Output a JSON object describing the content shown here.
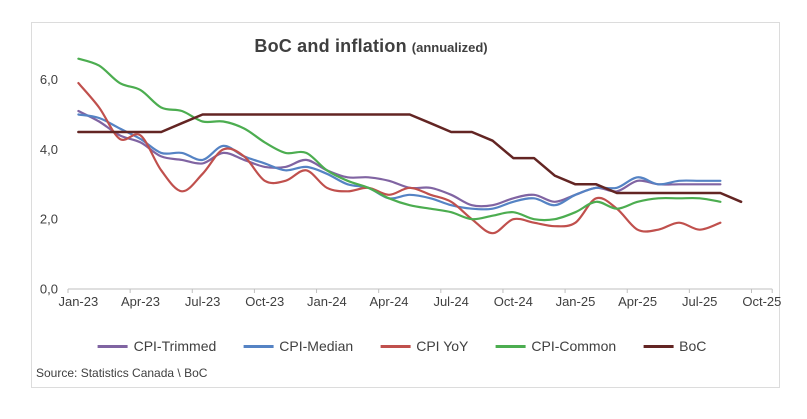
{
  "figure": {
    "title": "BoC and inflation",
    "title_suffix": "(annualized)",
    "source": "Source: Statistics Canada \\ BoC",
    "frame_border_color": "#dcdcdc",
    "axis_color": "#bfbfbf",
    "text_color": "#404040"
  },
  "chart_data": {
    "type": "line",
    "title": "BoC and inflation (annualized)",
    "xlabel": "",
    "ylabel": "",
    "grid": false,
    "legend_position": "bottom",
    "ylim": [
      0,
      7.6
    ],
    "y_ticks": [
      {
        "label": "0,0",
        "value": 0
      },
      {
        "label": "2,0",
        "value": 2
      },
      {
        "label": "4,0",
        "value": 4
      },
      {
        "label": "6,0",
        "value": 6
      }
    ],
    "x_tick_labels": [
      "Jan-23",
      "Apr-23",
      "Jul-23",
      "Oct-23",
      "Jan-24",
      "Apr-24",
      "Jul-24",
      "Oct-24",
      "Jan-25",
      "Apr-25",
      "Jul-25",
      "Oct-25"
    ],
    "categories": [
      "Jan-23",
      "Feb-23",
      "Mar-23",
      "Apr-23",
      "May-23",
      "Jun-23",
      "Jul-23",
      "Aug-23",
      "Sep-23",
      "Oct-23",
      "Nov-23",
      "Dec-23",
      "Jan-24",
      "Feb-24",
      "Mar-24",
      "Apr-24",
      "May-24",
      "Jun-24",
      "Jul-24",
      "Aug-24",
      "Sep-24",
      "Oct-24",
      "Nov-24",
      "Dec-24",
      "Jan-25",
      "Feb-25",
      "Mar-25",
      "Apr-25",
      "May-25",
      "Jun-25",
      "Jul-25",
      "Aug-25",
      "Sep-25",
      "Oct-25"
    ],
    "series": [
      {
        "name": "CPI-Trimmed",
        "color": "#8064A2",
        "stroke_width": 2.2,
        "smooth": true,
        "values": [
          5.1,
          4.8,
          4.4,
          4.2,
          3.8,
          3.7,
          3.6,
          3.9,
          3.7,
          3.5,
          3.5,
          3.7,
          3.4,
          3.2,
          3.2,
          3.1,
          2.9,
          2.9,
          2.7,
          2.4,
          2.4,
          2.6,
          2.7,
          2.5,
          2.7,
          2.9,
          2.8,
          3.1,
          3.0,
          3.0,
          3.0,
          3.0
        ]
      },
      {
        "name": "CPI-Median",
        "color": "#5583C4",
        "stroke_width": 2.2,
        "smooth": true,
        "values": [
          5.0,
          4.9,
          4.6,
          4.3,
          3.9,
          3.9,
          3.7,
          4.1,
          3.8,
          3.6,
          3.4,
          3.5,
          3.3,
          3.0,
          2.9,
          2.6,
          2.7,
          2.6,
          2.4,
          2.3,
          2.3,
          2.5,
          2.6,
          2.4,
          2.7,
          2.9,
          2.9,
          3.2,
          3.0,
          3.1,
          3.1,
          3.1
        ]
      },
      {
        "name": "CPI YoY",
        "color": "#C0504D",
        "stroke_width": 2.2,
        "smooth": true,
        "values": [
          5.9,
          5.2,
          4.3,
          4.4,
          3.4,
          2.8,
          3.3,
          4.0,
          3.8,
          3.1,
          3.1,
          3.4,
          2.9,
          2.8,
          2.9,
          2.7,
          2.9,
          2.7,
          2.5,
          2.0,
          1.6,
          2.0,
          1.9,
          1.8,
          1.9,
          2.6,
          2.3,
          1.7,
          1.7,
          1.9,
          1.7,
          1.9
        ]
      },
      {
        "name": "CPI-Common",
        "color": "#4CAD50",
        "stroke_width": 2.2,
        "smooth": true,
        "values": [
          6.6,
          6.4,
          5.9,
          5.7,
          5.2,
          5.1,
          4.8,
          4.8,
          4.6,
          4.2,
          3.9,
          3.9,
          3.4,
          3.1,
          2.9,
          2.6,
          2.4,
          2.3,
          2.2,
          2.0,
          2.1,
          2.2,
          2.0,
          2.0,
          2.2,
          2.5,
          2.3,
          2.5,
          2.6,
          2.6,
          2.6,
          2.5
        ]
      },
      {
        "name": "BoC",
        "color": "#632523",
        "stroke_width": 2.5,
        "smooth": false,
        "values": [
          4.5,
          4.5,
          4.5,
          4.5,
          4.5,
          4.75,
          5.0,
          5.0,
          5.0,
          5.0,
          5.0,
          5.0,
          5.0,
          5.0,
          5.0,
          5.0,
          5.0,
          4.75,
          4.5,
          4.5,
          4.25,
          3.75,
          3.75,
          3.25,
          3.0,
          3.0,
          2.75,
          2.75,
          2.75,
          2.75,
          2.75,
          2.75,
          2.5
        ]
      }
    ]
  }
}
